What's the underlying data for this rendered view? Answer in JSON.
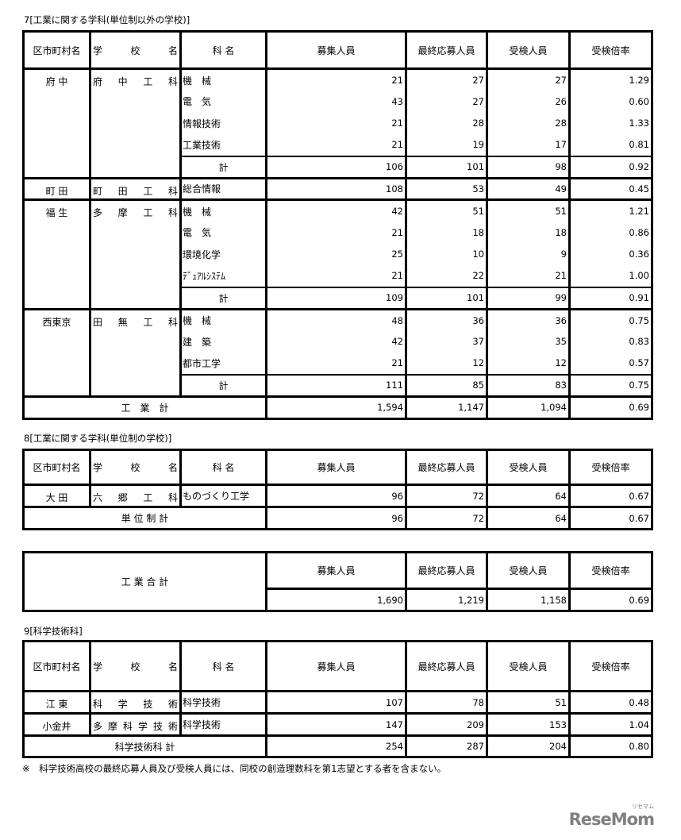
{
  "headers": [
    "区市町村名",
    "学 校 名",
    "科 名",
    "募集人員",
    "最終応募人員",
    "受検人員",
    "受検倍率"
  ],
  "section7": {
    "title": "7[工業に関する学科(単位制以外の学校)]",
    "groups": [
      {
        "district": "府 中",
        "school": "府 中 工 科",
        "rows": [
          {
            "dept": "機　械",
            "values": [
              "21",
              "27",
              "27",
              "1.29"
            ]
          },
          {
            "dept": "電　気",
            "values": [
              "43",
              "27",
              "26",
              "0.60"
            ]
          },
          {
            "dept": "情報技術",
            "values": [
              "21",
              "28",
              "28",
              "1.33"
            ]
          },
          {
            "dept": "工業技術",
            "values": [
              "21",
              "19",
              "17",
              "0.81"
            ]
          }
        ],
        "subtotal": {
          "label": "計",
          "values": [
            "106",
            "101",
            "98",
            "0.92"
          ]
        }
      },
      {
        "district": "町 田",
        "school": "町 田 工 科",
        "rows": [
          {
            "dept": "総合情報",
            "values": [
              "108",
              "53",
              "49",
              "0.45"
            ]
          }
        ]
      },
      {
        "district": "福 生",
        "school": "多 摩 工 科",
        "rows": [
          {
            "dept": "機　械",
            "values": [
              "42",
              "51",
              "51",
              "1.21"
            ]
          },
          {
            "dept": "電　気",
            "values": [
              "21",
              "18",
              "18",
              "0.86"
            ]
          },
          {
            "dept": "環境化学",
            "values": [
              "25",
              "10",
              "9",
              "0.36"
            ]
          },
          {
            "dept": "ﾃﾞｭｱﾙｼｽﾃﾑ",
            "values": [
              "21",
              "22",
              "21",
              "1.00"
            ]
          }
        ],
        "subtotal": {
          "label": "計",
          "values": [
            "109",
            "101",
            "99",
            "0.91"
          ]
        }
      },
      {
        "district": "西東京",
        "school": "田 無 工 科",
        "rows": [
          {
            "dept": "機　械",
            "values": [
              "48",
              "36",
              "36",
              "0.75"
            ]
          },
          {
            "dept": "建　築",
            "values": [
              "42",
              "37",
              "35",
              "0.83"
            ]
          },
          {
            "dept": "都市工学",
            "values": [
              "21",
              "12",
              "12",
              "0.57"
            ]
          }
        ],
        "subtotal": {
          "label": "計",
          "values": [
            "111",
            "85",
            "83",
            "0.75"
          ]
        }
      }
    ],
    "total": {
      "label": "工　業　計",
      "values": [
        "1,594",
        "1,147",
        "1,094",
        "0.69"
      ]
    }
  },
  "section8": {
    "title": "8[工業に関する学科(単位制の学校)]",
    "groups": [
      {
        "district": "大 田",
        "school": "六 郷 工 科",
        "rows": [
          {
            "dept": "ものづくり工学",
            "values": [
              "96",
              "72",
              "64",
              "0.67"
            ]
          }
        ]
      }
    ],
    "total": {
      "label": "単 位 制 計",
      "values": [
        "96",
        "72",
        "64",
        "0.67"
      ]
    }
  },
  "grand_total": {
    "label": "工 業 合 計",
    "headers": [
      "募集人員",
      "最終応募人員",
      "受検人員",
      "受検倍率"
    ],
    "values": [
      "1,690",
      "1,219",
      "1,158",
      "0.69"
    ]
  },
  "section9": {
    "title": "9[科学技術科]",
    "groups": [
      {
        "district": "江 東",
        "school": "科 学 技 術",
        "rows": [
          {
            "dept": "科学技術",
            "values": [
              "107",
              "78",
              "51",
              "0.48"
            ]
          }
        ]
      },
      {
        "district": "小金井",
        "school": "多 摩 科 学 技 術",
        "rows": [
          {
            "dept": "科学技術",
            "values": [
              "147",
              "209",
              "153",
              "1.04"
            ]
          }
        ]
      }
    ],
    "total": {
      "label": "科学技術科 計",
      "values": [
        "254",
        "287",
        "204",
        "0.80"
      ]
    }
  },
  "footnote": "※　科学技術高校の最終応募人員及び受検人員には、同校の創造理数科を第1志望とする者を含まない。",
  "logo": {
    "text": "ReseMom",
    "sub": "リセマム",
    "color": "#808080"
  }
}
